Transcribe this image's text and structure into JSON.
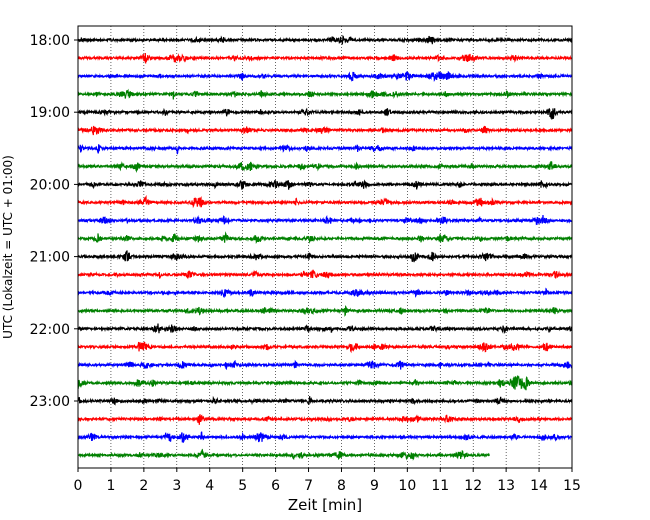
{
  "chart_data": {
    "type": "line",
    "title": "",
    "xlabel": "Zeit  [min]",
    "ylabel": "UTC (Lokalzeit = UTC + 01:00)",
    "xlim": [
      0,
      15
    ],
    "x_ticks": [
      "0",
      "1",
      "2",
      "3",
      "4",
      "5",
      "6",
      "7",
      "8",
      "9",
      "10",
      "11",
      "12",
      "13",
      "14",
      "15"
    ],
    "y_ticks": [
      "18:00",
      "19:00",
      "20:00",
      "21:00",
      "22:00",
      "23:00"
    ],
    "grid": "vertical-dotted",
    "traces_per_hour": 4,
    "trace_minutes": 15,
    "colors": [
      "#000000",
      "#ff0000",
      "#0000ff",
      "#008000"
    ],
    "series": [
      {
        "start": "18:00",
        "end_min": 15
      },
      {
        "start": "18:15",
        "end_min": 15
      },
      {
        "start": "18:30",
        "end_min": 15
      },
      {
        "start": "18:45",
        "end_min": 15
      },
      {
        "start": "19:00",
        "end_min": 15
      },
      {
        "start": "19:15",
        "end_min": 15
      },
      {
        "start": "19:30",
        "end_min": 15
      },
      {
        "start": "19:45",
        "end_min": 15
      },
      {
        "start": "20:00",
        "end_min": 15
      },
      {
        "start": "20:15",
        "end_min": 15
      },
      {
        "start": "20:30",
        "end_min": 15
      },
      {
        "start": "20:45",
        "end_min": 15
      },
      {
        "start": "21:00",
        "end_min": 15
      },
      {
        "start": "21:15",
        "end_min": 15
      },
      {
        "start": "21:30",
        "end_min": 15
      },
      {
        "start": "21:45",
        "end_min": 15
      },
      {
        "start": "22:00",
        "end_min": 15
      },
      {
        "start": "22:15",
        "end_min": 15
      },
      {
        "start": "22:30",
        "end_min": 15
      },
      {
        "start": "22:45",
        "end_min": 15
      },
      {
        "start": "23:00",
        "end_min": 15
      },
      {
        "start": "23:15",
        "end_min": 15
      },
      {
        "start": "23:30",
        "end_min": 15
      },
      {
        "start": "23:45",
        "end_min": 12.5
      }
    ]
  }
}
